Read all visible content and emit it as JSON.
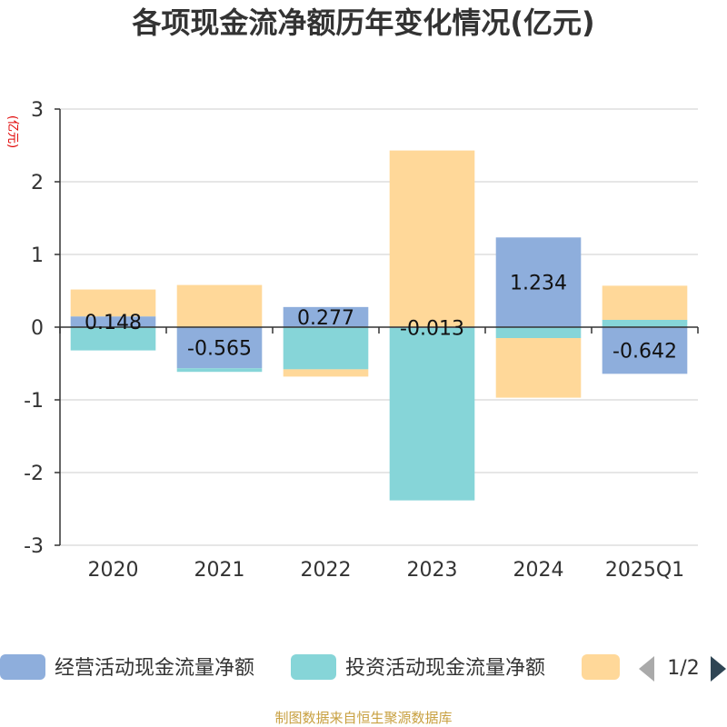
{
  "chart_data": {
    "type": "bar",
    "stacked": true,
    "title": "各项现金流净额历年变化情况(亿元)",
    "ylabel": "(亿元)",
    "xlabel": "",
    "ylim": [
      -3,
      3
    ],
    "yticks": [
      3,
      2,
      1,
      0,
      -1,
      -2,
      -3
    ],
    "categories": [
      "2020",
      "2021",
      "2022",
      "2023",
      "2024",
      "2025Q1"
    ],
    "series": [
      {
        "name": "经营活动现金流量净额",
        "color": "#8eaedc",
        "values": [
          0.148,
          -0.565,
          0.277,
          -0.013,
          1.234,
          -0.642
        ],
        "show_labels": true
      },
      {
        "name": "投资活动现金流量净额",
        "color": "#86d5d8",
        "values": [
          -0.32,
          -0.05,
          -0.58,
          -2.37,
          -0.15,
          0.1
        ],
        "show_labels": false
      },
      {
        "name": "",
        "color": "#ffd899",
        "values": [
          0.37,
          0.58,
          -0.1,
          2.43,
          -0.82,
          0.47
        ],
        "show_labels": false
      }
    ],
    "data_labels": [
      "0.148",
      "-0.565",
      "0.277",
      "-0.013",
      "1.234",
      "-0.642"
    ],
    "legend": {
      "position": "bottom",
      "labels": [
        "经营活动现金流量净额",
        "投资活动现金流量净额",
        ""
      ],
      "page": "1/2"
    },
    "source": "制图数据来自恒生聚源数据库"
  }
}
